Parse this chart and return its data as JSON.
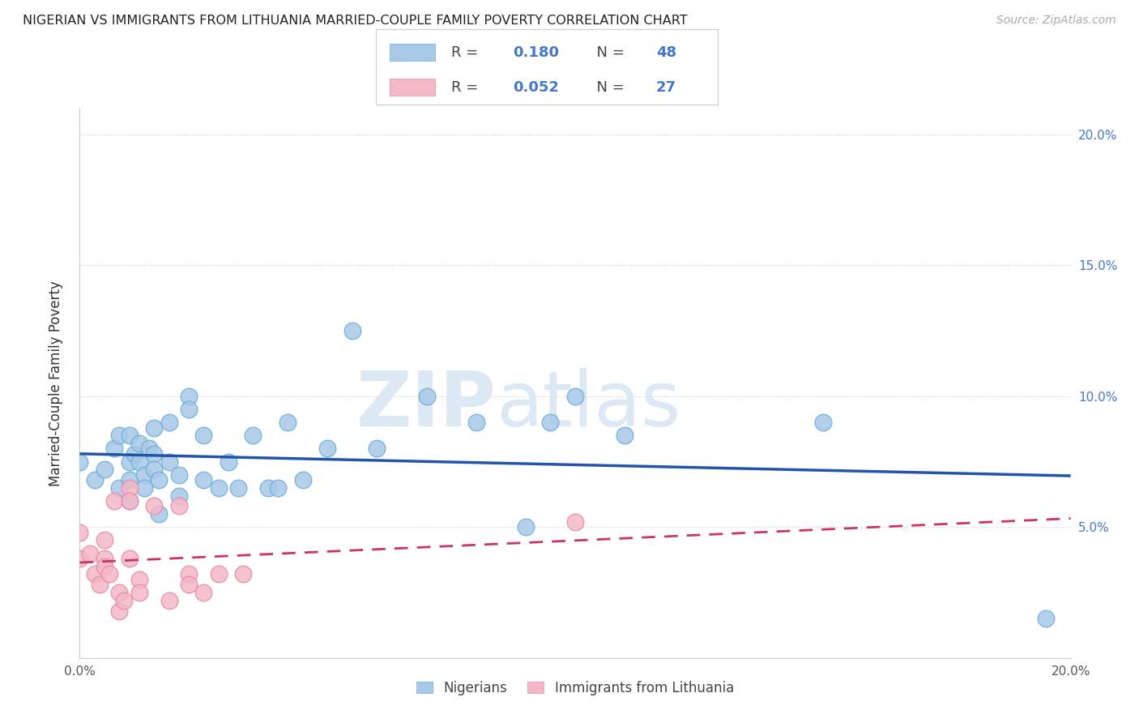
{
  "title": "NIGERIAN VS IMMIGRANTS FROM LITHUANIA MARRIED-COUPLE FAMILY POVERTY CORRELATION CHART",
  "source": "Source: ZipAtlas.com",
  "ylabel": "Married-Couple Family Poverty",
  "xlim": [
    0.0,
    0.2
  ],
  "ylim": [
    0.0,
    0.21
  ],
  "nigerian_R": 0.18,
  "nigerian_N": 48,
  "lithuania_R": 0.052,
  "lithuania_N": 27,
  "nigerian_color": "#a8c8e8",
  "nigerian_edge_color": "#6baed6",
  "nigerian_line_color": "#2255aa",
  "lithuania_color": "#f4b8c8",
  "lithuania_edge_color": "#e888a8",
  "lithuania_line_color": "#cc3366",
  "legend_text_color": "#4477cc",
  "watermark_color": "#d8e4f0",
  "nigerian_x": [
    0.0,
    0.003,
    0.005,
    0.007,
    0.008,
    0.008,
    0.01,
    0.01,
    0.01,
    0.01,
    0.011,
    0.012,
    0.012,
    0.013,
    0.013,
    0.014,
    0.015,
    0.015,
    0.015,
    0.016,
    0.016,
    0.018,
    0.018,
    0.02,
    0.02,
    0.022,
    0.022,
    0.025,
    0.025,
    0.028,
    0.03,
    0.032,
    0.035,
    0.038,
    0.04,
    0.042,
    0.045,
    0.05,
    0.055,
    0.06,
    0.07,
    0.08,
    0.09,
    0.095,
    0.1,
    0.11,
    0.15,
    0.195
  ],
  "nigerian_y": [
    0.075,
    0.068,
    0.072,
    0.08,
    0.085,
    0.065,
    0.085,
    0.075,
    0.068,
    0.06,
    0.078,
    0.082,
    0.075,
    0.07,
    0.065,
    0.08,
    0.088,
    0.078,
    0.072,
    0.055,
    0.068,
    0.09,
    0.075,
    0.07,
    0.062,
    0.1,
    0.095,
    0.085,
    0.068,
    0.065,
    0.075,
    0.065,
    0.085,
    0.065,
    0.065,
    0.09,
    0.068,
    0.08,
    0.125,
    0.08,
    0.1,
    0.09,
    0.05,
    0.09,
    0.1,
    0.085,
    0.09,
    0.015
  ],
  "lithuania_x": [
    0.0,
    0.0,
    0.002,
    0.003,
    0.004,
    0.005,
    0.005,
    0.005,
    0.006,
    0.007,
    0.008,
    0.008,
    0.009,
    0.01,
    0.01,
    0.01,
    0.012,
    0.012,
    0.015,
    0.018,
    0.02,
    0.022,
    0.022,
    0.025,
    0.028,
    0.033,
    0.1
  ],
  "lithuania_y": [
    0.048,
    0.038,
    0.04,
    0.032,
    0.028,
    0.045,
    0.038,
    0.035,
    0.032,
    0.06,
    0.025,
    0.018,
    0.022,
    0.065,
    0.06,
    0.038,
    0.03,
    0.025,
    0.058,
    0.022,
    0.058,
    0.032,
    0.028,
    0.025,
    0.032,
    0.032,
    0.052
  ]
}
